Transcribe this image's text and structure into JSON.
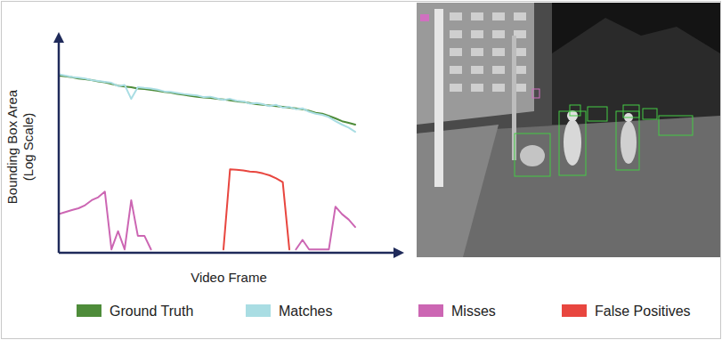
{
  "chart_data": {
    "type": "line",
    "x_label": "Video Frame",
    "y_label": "Bounding Box Area\n(Log Scale)",
    "log": "y",
    "grid": false,
    "tick_labels": false,
    "legend": "bottom",
    "xlim": [
      0,
      100
    ],
    "ylim": [
      1,
      100000
    ],
    "x": [
      0,
      2,
      4,
      6,
      8,
      10,
      12,
      14,
      16,
      18,
      20,
      22,
      24,
      26,
      28,
      30,
      32,
      34,
      36,
      38,
      40,
      42,
      44,
      46,
      48,
      50,
      52,
      54,
      56,
      58,
      60,
      62,
      64,
      66,
      68,
      70,
      72,
      74,
      76,
      78,
      80,
      82,
      84,
      86,
      88,
      90
    ],
    "series": [
      {
        "name": "Ground Truth",
        "color": "#4e8c3a",
        "values": [
          14000,
          13500,
          12800,
          12000,
          11500,
          11000,
          10200,
          9800,
          9000,
          8200,
          7800,
          7500,
          7000,
          6800,
          6500,
          6200,
          5800,
          5600,
          5200,
          5000,
          4700,
          4500,
          4300,
          4200,
          4000,
          3900,
          3700,
          3500,
          3400,
          3200,
          3000,
          2900,
          2800,
          2700,
          2600,
          2500,
          2400,
          2300,
          2100,
          1900,
          1800,
          1600,
          1400,
          1200,
          1100,
          1000
        ]
      },
      {
        "name": "Matches",
        "color": "#a9dde3",
        "values": [
          15000,
          14000,
          13000,
          12500,
          12000,
          11000,
          10500,
          10000,
          9500,
          8000,
          8500,
          4000,
          7500,
          7200,
          7000,
          6600,
          6000,
          5800,
          5500,
          5200,
          5000,
          4800,
          4400,
          4500,
          4100,
          3800,
          4000,
          3600,
          3500,
          3100,
          3200,
          3000,
          2700,
          2900,
          2500,
          2600,
          2300,
          2400,
          2000,
          1800,
          1700,
          1500,
          1200,
          1000,
          850,
          680
        ]
      },
      {
        "name": "Misses",
        "color": "#cc66b3",
        "values": [
          8,
          9,
          10,
          11,
          13,
          17,
          20,
          27,
          1.2,
          3.2,
          1.2,
          17,
          2.5,
          2.5,
          1.2,
          null,
          null,
          null,
          null,
          null,
          null,
          null,
          null,
          null,
          null,
          null,
          null,
          null,
          null,
          null,
          null,
          null,
          null,
          null,
          null,
          null,
          1.2,
          2.0,
          1.2,
          1.2,
          1.2,
          1.2,
          12,
          8,
          6,
          4
        ]
      },
      {
        "name": "False Positives",
        "color": "#e8463f",
        "values": [
          null,
          null,
          null,
          null,
          null,
          null,
          null,
          null,
          null,
          null,
          null,
          null,
          null,
          null,
          null,
          null,
          null,
          null,
          null,
          null,
          null,
          null,
          null,
          null,
          null,
          1.2,
          90,
          88,
          85,
          80,
          78,
          72,
          65,
          55,
          45,
          1.2,
          null,
          null,
          null,
          null,
          null,
          null,
          null,
          null,
          null,
          null
        ]
      }
    ]
  }
}
